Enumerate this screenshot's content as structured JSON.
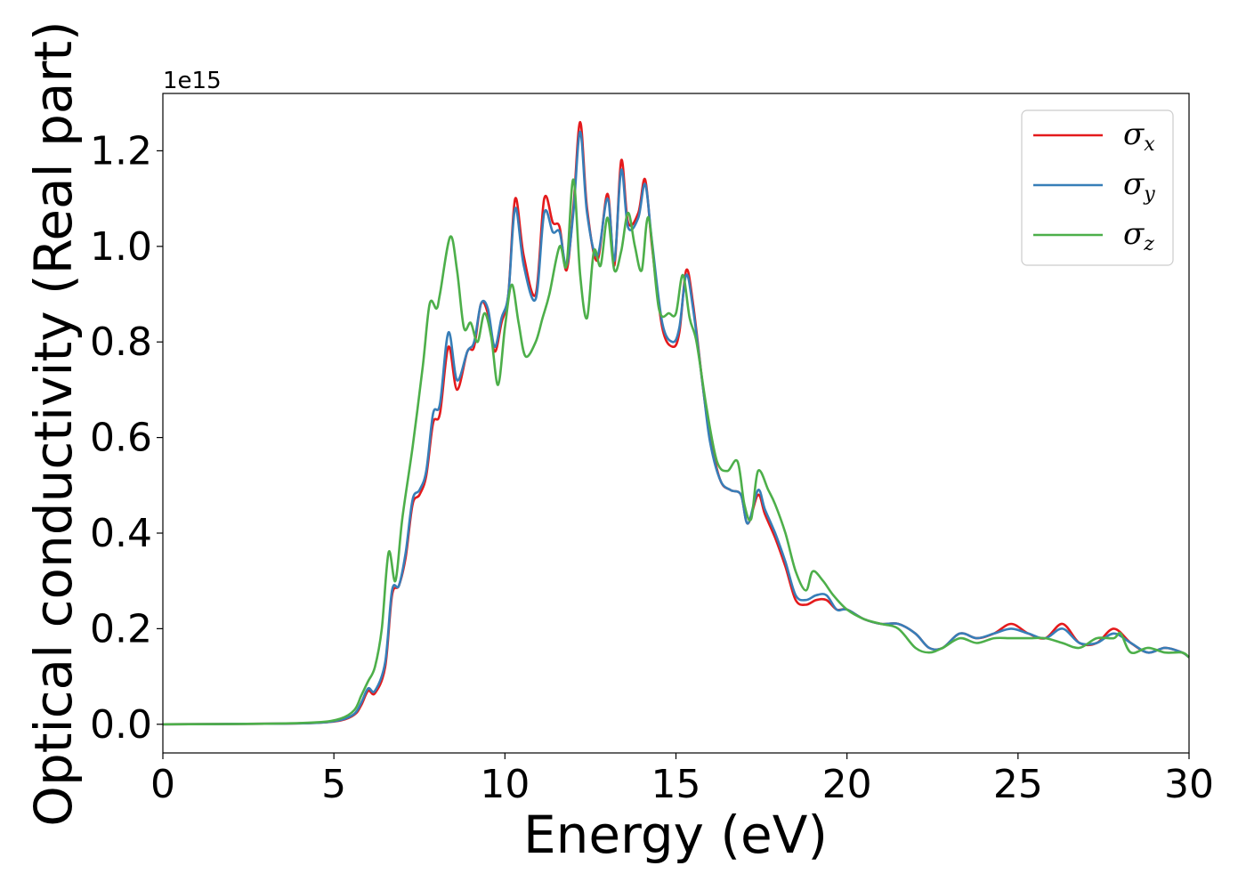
{
  "chart_data": {
    "type": "line",
    "xlabel": "Energy (eV)",
    "ylabel": "Optical conductivity (Real part)",
    "y_offset_label": "1e15",
    "xlim": [
      0,
      30
    ],
    "ylim": [
      -0.06,
      1.32
    ],
    "xticks": [
      0,
      5,
      10,
      15,
      20,
      25,
      30
    ],
    "xtick_labels": [
      "0",
      "5",
      "10",
      "15",
      "20",
      "25",
      "30"
    ],
    "yticks": [
      0.0,
      0.2,
      0.4,
      0.6,
      0.8,
      1.0,
      1.2
    ],
    "ytick_labels": [
      "0.0",
      "0.2",
      "0.4",
      "0.6",
      "0.8",
      "1.0",
      "1.2"
    ],
    "grid": false,
    "legend": "top-right",
    "series": [
      {
        "name": "σx",
        "name_main": "σ",
        "name_sub": "x",
        "color": "#e41a1c",
        "x": [
          0,
          3,
          4.5,
          5.2,
          5.6,
          5.8,
          6.0,
          6.2,
          6.5,
          6.7,
          6.9,
          7.1,
          7.3,
          7.5,
          7.7,
          7.9,
          8.1,
          8.35,
          8.6,
          8.9,
          9.1,
          9.3,
          9.5,
          9.7,
          9.9,
          10.1,
          10.3,
          10.55,
          10.9,
          11.15,
          11.4,
          11.6,
          11.8,
          12.0,
          12.2,
          12.4,
          12.7,
          13.0,
          13.2,
          13.4,
          13.6,
          13.9,
          14.1,
          14.3,
          14.6,
          14.9,
          15.1,
          15.3,
          15.5,
          15.8,
          16.0,
          16.3,
          16.6,
          16.9,
          17.1,
          17.4,
          17.6,
          17.9,
          18.2,
          18.5,
          18.8,
          19.1,
          19.4,
          19.7,
          20.0,
          20.5,
          21.0,
          21.5,
          22.0,
          22.4,
          22.8,
          23.3,
          23.8,
          24.3,
          24.8,
          25.3,
          25.8,
          26.3,
          26.8,
          27.3,
          27.8,
          28.3,
          28.8,
          29.3,
          29.8,
          30.0
        ],
        "y": [
          0.0,
          0.001,
          0.003,
          0.008,
          0.02,
          0.04,
          0.07,
          0.065,
          0.12,
          0.27,
          0.29,
          0.35,
          0.46,
          0.48,
          0.52,
          0.63,
          0.65,
          0.79,
          0.7,
          0.78,
          0.79,
          0.88,
          0.86,
          0.78,
          0.84,
          0.9,
          1.1,
          0.98,
          0.9,
          1.1,
          1.05,
          1.04,
          0.95,
          1.08,
          1.26,
          1.08,
          0.97,
          1.11,
          0.96,
          1.18,
          1.05,
          1.07,
          1.14,
          1.0,
          0.83,
          0.79,
          0.82,
          0.95,
          0.88,
          0.7,
          0.6,
          0.51,
          0.49,
          0.48,
          0.42,
          0.48,
          0.44,
          0.39,
          0.33,
          0.26,
          0.25,
          0.26,
          0.26,
          0.24,
          0.24,
          0.22,
          0.21,
          0.21,
          0.19,
          0.16,
          0.16,
          0.19,
          0.18,
          0.19,
          0.21,
          0.19,
          0.18,
          0.21,
          0.17,
          0.17,
          0.2,
          0.17,
          0.15,
          0.16,
          0.15,
          0.14
        ]
      },
      {
        "name": "σy",
        "name_main": "σ",
        "name_sub": "y",
        "color": "#377eb8",
        "x": [
          0,
          3,
          4.5,
          5.2,
          5.6,
          5.8,
          6.0,
          6.2,
          6.5,
          6.7,
          6.9,
          7.1,
          7.3,
          7.5,
          7.7,
          7.9,
          8.1,
          8.35,
          8.6,
          8.9,
          9.1,
          9.3,
          9.5,
          9.7,
          9.9,
          10.1,
          10.3,
          10.55,
          10.9,
          11.15,
          11.4,
          11.6,
          11.8,
          12.0,
          12.2,
          12.4,
          12.7,
          13.0,
          13.2,
          13.4,
          13.6,
          13.9,
          14.1,
          14.3,
          14.6,
          14.9,
          15.1,
          15.3,
          15.5,
          15.8,
          16.0,
          16.3,
          16.6,
          16.9,
          17.1,
          17.4,
          17.6,
          17.9,
          18.2,
          18.5,
          18.8,
          19.1,
          19.4,
          19.7,
          20.0,
          20.5,
          21.0,
          21.5,
          22.0,
          22.4,
          22.8,
          23.3,
          23.8,
          24.3,
          24.8,
          25.3,
          25.8,
          26.3,
          26.8,
          27.3,
          27.8,
          28.3,
          28.8,
          29.3,
          29.8,
          30.0
        ],
        "y": [
          0.0,
          0.001,
          0.003,
          0.009,
          0.022,
          0.045,
          0.075,
          0.07,
          0.13,
          0.28,
          0.29,
          0.36,
          0.47,
          0.49,
          0.53,
          0.65,
          0.67,
          0.82,
          0.72,
          0.78,
          0.8,
          0.88,
          0.87,
          0.79,
          0.85,
          0.9,
          1.08,
          0.96,
          0.89,
          1.07,
          1.03,
          1.03,
          0.96,
          1.07,
          1.24,
          1.07,
          0.98,
          1.1,
          0.97,
          1.16,
          1.04,
          1.06,
          1.13,
          1.01,
          0.84,
          0.8,
          0.83,
          0.94,
          0.87,
          0.7,
          0.59,
          0.51,
          0.49,
          0.48,
          0.42,
          0.49,
          0.45,
          0.4,
          0.34,
          0.27,
          0.26,
          0.27,
          0.27,
          0.24,
          0.24,
          0.22,
          0.21,
          0.21,
          0.19,
          0.16,
          0.16,
          0.19,
          0.18,
          0.19,
          0.2,
          0.19,
          0.18,
          0.2,
          0.17,
          0.17,
          0.19,
          0.17,
          0.15,
          0.16,
          0.15,
          0.14
        ]
      },
      {
        "name": "σz",
        "name_main": "σ",
        "name_sub": "z",
        "color": "#4daf4a",
        "x": [
          0,
          3,
          4.5,
          5.2,
          5.6,
          5.8,
          6.0,
          6.2,
          6.4,
          6.6,
          6.8,
          7.0,
          7.3,
          7.6,
          7.8,
          8.0,
          8.1,
          8.4,
          8.6,
          8.8,
          9.0,
          9.2,
          9.4,
          9.6,
          9.8,
          10.0,
          10.2,
          10.4,
          10.6,
          10.9,
          11.1,
          11.3,
          11.6,
          11.8,
          12.0,
          12.2,
          12.4,
          12.6,
          12.8,
          13.0,
          13.2,
          13.4,
          13.6,
          13.8,
          14.0,
          14.2,
          14.5,
          14.8,
          15.0,
          15.2,
          15.4,
          15.6,
          15.9,
          16.2,
          16.5,
          16.8,
          17.0,
          17.2,
          17.4,
          17.7,
          17.9,
          18.2,
          18.5,
          18.8,
          19.0,
          19.3,
          19.6,
          20.0,
          20.5,
          21.0,
          21.5,
          22.0,
          22.4,
          22.8,
          23.3,
          23.8,
          24.3,
          24.8,
          25.3,
          25.8,
          26.3,
          26.8,
          27.3,
          27.8,
          28.0,
          28.3,
          28.8,
          29.3,
          29.8,
          30.0
        ],
        "y": [
          0.0,
          0.001,
          0.004,
          0.012,
          0.03,
          0.06,
          0.09,
          0.12,
          0.2,
          0.36,
          0.3,
          0.43,
          0.58,
          0.75,
          0.88,
          0.87,
          0.9,
          1.02,
          0.95,
          0.83,
          0.84,
          0.8,
          0.86,
          0.81,
          0.71,
          0.83,
          0.92,
          0.84,
          0.77,
          0.8,
          0.85,
          0.9,
          1.0,
          0.96,
          1.14,
          0.94,
          0.85,
          0.99,
          0.96,
          1.06,
          0.95,
          0.99,
          1.07,
          1.0,
          0.95,
          1.06,
          0.87,
          0.86,
          0.86,
          0.94,
          0.85,
          0.8,
          0.66,
          0.55,
          0.53,
          0.55,
          0.46,
          0.43,
          0.53,
          0.49,
          0.46,
          0.4,
          0.32,
          0.28,
          0.32,
          0.3,
          0.27,
          0.24,
          0.22,
          0.21,
          0.2,
          0.16,
          0.15,
          0.16,
          0.18,
          0.17,
          0.18,
          0.18,
          0.18,
          0.18,
          0.17,
          0.16,
          0.18,
          0.18,
          0.19,
          0.15,
          0.16,
          0.15,
          0.15,
          0.14
        ]
      }
    ]
  }
}
